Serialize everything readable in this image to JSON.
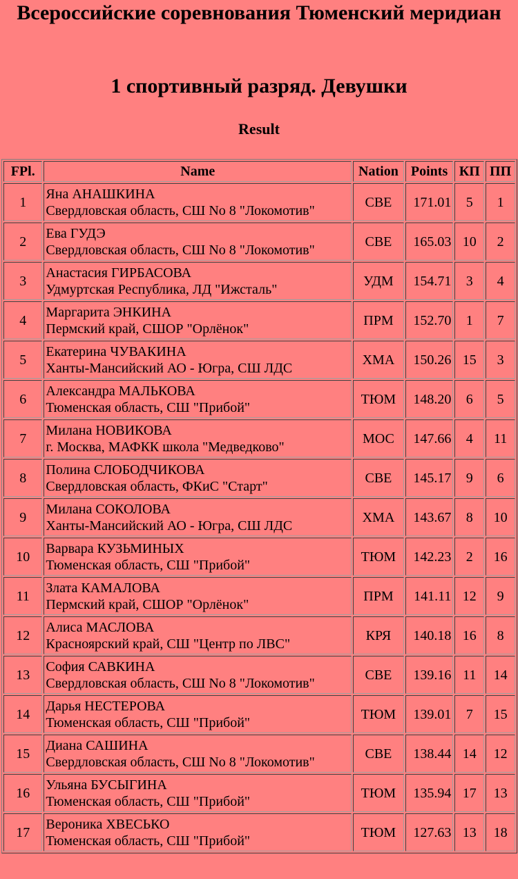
{
  "header": {
    "title": "Всероссийские соревнования Тюменский меридиан",
    "category": "1 спортивный разряд. Девушки",
    "subtitle": "Result"
  },
  "colors": {
    "background": "#ff8080"
  },
  "table": {
    "columns": [
      "FPl.",
      "Name",
      "Nation",
      "Points",
      "КП",
      "ПП"
    ],
    "rows": [
      {
        "pl": "1",
        "name": "Яна АНАШКИНА",
        "club": "Свердловская область, СШ No 8 \"Локомотив\"",
        "nation": "СВЕ",
        "points": "171.01",
        "kp": "5",
        "pp": "1"
      },
      {
        "pl": "2",
        "name": "Ева ГУДЭ",
        "club": "Свердловская область, СШ No 8 \"Локомотив\"",
        "nation": "СВЕ",
        "points": "165.03",
        "kp": "10",
        "pp": "2"
      },
      {
        "pl": "3",
        "name": "Анастасия ГИРБАСОВА",
        "club": "Удмуртская Республика, ЛД \"Ижсталь\"",
        "nation": "УДМ",
        "points": "154.71",
        "kp": "3",
        "pp": "4"
      },
      {
        "pl": "4",
        "name": "Маргарита ЭНКИНА",
        "club": "Пермский край, СШОР \"Орлёнок\"",
        "nation": "ПРМ",
        "points": "152.70",
        "kp": "1",
        "pp": "7"
      },
      {
        "pl": "5",
        "name": "Екатерина ЧУВАКИНА",
        "club": "Ханты-Мансийский АО - Югра, СШ ЛДС",
        "nation": "ХМА",
        "points": "150.26",
        "kp": "15",
        "pp": "3"
      },
      {
        "pl": "6",
        "name": "Александра МАЛЬКОВА",
        "club": "Тюменская область, СШ \"Прибой\"",
        "nation": "ТЮМ",
        "points": "148.20",
        "kp": "6",
        "pp": "5"
      },
      {
        "pl": "7",
        "name": "Милана НОВИКОВА",
        "club": "г. Москва, МАФКК школа \"Медведково\"",
        "nation": "МОС",
        "points": "147.66",
        "kp": "4",
        "pp": "11"
      },
      {
        "pl": "8",
        "name": "Полина СЛОБОДЧИКОВА",
        "club": "Свердловская область, ФКиС \"Старт\"",
        "nation": "СВЕ",
        "points": "145.17",
        "kp": "9",
        "pp": "6"
      },
      {
        "pl": "9",
        "name": "Милана СОКОЛОВА",
        "club": "Ханты-Мансийский АО - Югра, СШ ЛДС",
        "nation": "ХМА",
        "points": "143.67",
        "kp": "8",
        "pp": "10"
      },
      {
        "pl": "10",
        "name": "Варвара КУЗЬМИНЫХ",
        "club": "Тюменская область, СШ \"Прибой\"",
        "nation": "ТЮМ",
        "points": "142.23",
        "kp": "2",
        "pp": "16"
      },
      {
        "pl": "11",
        "name": "Злата КАМАЛОВА",
        "club": "Пермский край, СШОР \"Орлёнок\"",
        "nation": "ПРМ",
        "points": "141.11",
        "kp": "12",
        "pp": "9"
      },
      {
        "pl": "12",
        "name": "Алиса МАСЛОВА",
        "club": "Красноярский край, СШ \"Центр по ЛВС\"",
        "nation": "КРЯ",
        "points": "140.18",
        "kp": "16",
        "pp": "8"
      },
      {
        "pl": "13",
        "name": "София САВКИНА",
        "club": "Свердловская область, СШ No 8 \"Локомотив\"",
        "nation": "СВЕ",
        "points": "139.16",
        "kp": "11",
        "pp": "14"
      },
      {
        "pl": "14",
        "name": "Дарья НЕСТЕРОВА",
        "club": "Тюменская область, СШ \"Прибой\"",
        "nation": "ТЮМ",
        "points": "139.01",
        "kp": "7",
        "pp": "15"
      },
      {
        "pl": "15",
        "name": "Диана САШИНА",
        "club": "Свердловская область, СШ No 8 \"Локомотив\"",
        "nation": "СВЕ",
        "points": "138.44",
        "kp": "14",
        "pp": "12"
      },
      {
        "pl": "16",
        "name": "Ульяна БУСЫГИНА",
        "club": "Тюменская область, СШ \"Прибой\"",
        "nation": "ТЮМ",
        "points": "135.94",
        "kp": "17",
        "pp": "13"
      },
      {
        "pl": "17",
        "name": "Вероника ХВЕСЬКО",
        "club": "Тюменская область, СШ \"Прибой\"",
        "nation": "ТЮМ",
        "points": "127.63",
        "kp": "13",
        "pp": "18"
      }
    ]
  }
}
